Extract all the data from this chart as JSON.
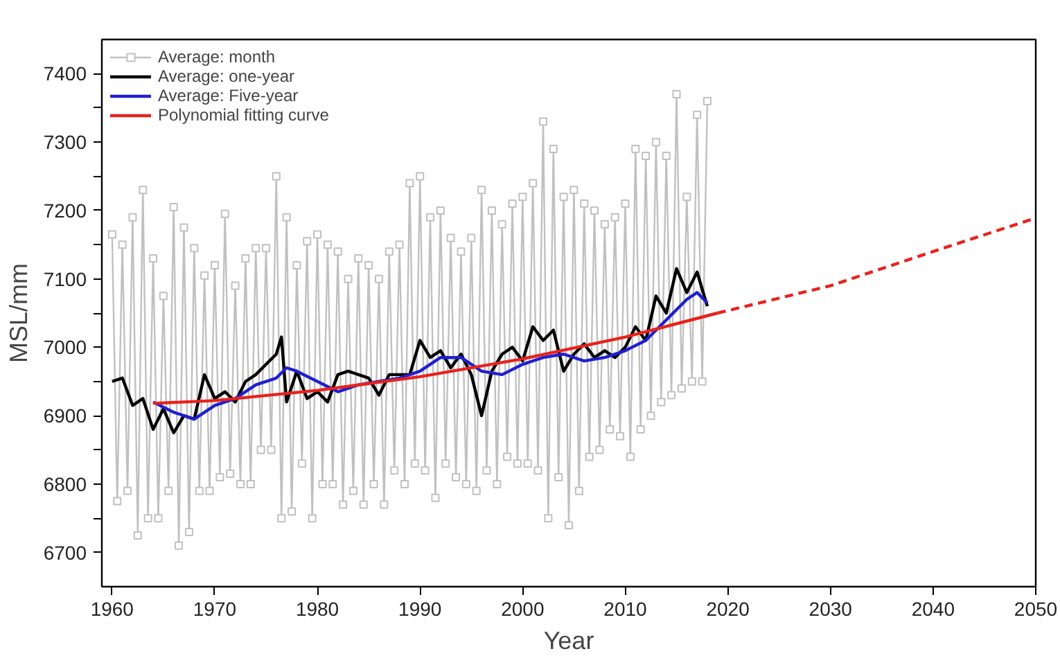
{
  "chart_data": {
    "type": "line",
    "xlabel": "Year",
    "ylabel": "MSL/mm",
    "xlim": [
      1959,
      2050
    ],
    "ylim": [
      6650,
      7450
    ],
    "xticks": [
      1960,
      1970,
      1980,
      1990,
      2000,
      2010,
      2020,
      2030,
      2040,
      2050
    ],
    "yticks": [
      6700,
      {
        "value": 6750,
        "label": null
      },
      6800,
      {
        "value": 6850,
        "label": null
      },
      6900,
      {
        "value": 6950,
        "label": null
      },
      7000,
      {
        "value": 7050,
        "label": null
      },
      7100,
      {
        "value": 7150,
        "label": null
      },
      7200,
      {
        "value": 7250,
        "label": null
      },
      7300,
      {
        "value": 7350,
        "label": null
      },
      7400
    ],
    "grid": false,
    "legend": "top left",
    "series": [
      {
        "name": "Average: month",
        "color": "#c0c0c0",
        "marker": "square",
        "x": [
          1960,
          1960.5,
          1961,
          1961.5,
          1962,
          1962.5,
          1963,
          1963.5,
          1964,
          1964.5,
          1965,
          1965.5,
          1966,
          1966.5,
          1967,
          1967.5,
          1968,
          1968.5,
          1969,
          1969.5,
          1970,
          1970.5,
          1971,
          1971.5,
          1972,
          1972.5,
          1973,
          1973.5,
          1974,
          1974.5,
          1975,
          1975.5,
          1976,
          1976.5,
          1977,
          1977.5,
          1978,
          1978.5,
          1979,
          1979.5,
          1980,
          1980.5,
          1981,
          1981.5,
          1982,
          1982.5,
          1983,
          1983.5,
          1984,
          1984.5,
          1985,
          1985.5,
          1986,
          1986.5,
          1987,
          1987.5,
          1988,
          1988.5,
          1989,
          1989.5,
          1990,
          1990.5,
          1991,
          1991.5,
          1992,
          1992.5,
          1993,
          1993.5,
          1994,
          1994.5,
          1995,
          1995.5,
          1996,
          1996.5,
          1997,
          1997.5,
          1998,
          1998.5,
          1999,
          1999.5,
          2000,
          2000.5,
          2001,
          2001.5,
          2002,
          2002.5,
          2003,
          2003.5,
          2004,
          2004.5,
          2005,
          2005.5,
          2006,
          2006.5,
          2007,
          2007.5,
          2008,
          2008.5,
          2009,
          2009.5,
          2010,
          2010.5,
          2011,
          2011.5,
          2012,
          2012.5,
          2013,
          2013.5,
          2014,
          2014.5,
          2015,
          2015.5,
          2016,
          2016.5,
          2017,
          2017.5,
          2018
        ],
        "values": [
          7165,
          6775,
          7150,
          6790,
          7190,
          6725,
          7230,
          6750,
          7130,
          6750,
          7075,
          6790,
          7205,
          6710,
          7175,
          6730,
          7145,
          6790,
          7105,
          6790,
          7120,
          6810,
          7195,
          6815,
          7090,
          6800,
          7130,
          6800,
          7145,
          6850,
          7145,
          6850,
          7250,
          6750,
          7190,
          6760,
          7120,
          6830,
          7155,
          6750,
          7165,
          6800,
          7150,
          6800,
          7140,
          6770,
          7100,
          6790,
          7130,
          6770,
          7120,
          6800,
          7100,
          6770,
          7140,
          6820,
          7150,
          6800,
          7240,
          6830,
          7250,
          6820,
          7190,
          6780,
          7200,
          6830,
          7160,
          6810,
          7140,
          6800,
          7160,
          6790,
          7230,
          6820,
          7200,
          6800,
          7180,
          6840,
          7210,
          6830,
          7220,
          6830,
          7240,
          6820,
          7330,
          6750,
          7290,
          6810,
          7220,
          6740,
          7230,
          6790,
          7210,
          6840,
          7200,
          6850,
          7180,
          6880,
          7190,
          6870,
          7210,
          6840,
          7290,
          6880,
          7280,
          6900,
          7300,
          6920,
          7280,
          6930,
          7370,
          6940,
          7220,
          6950,
          7340,
          6950,
          7360
        ]
      },
      {
        "name": "Average: one-year",
        "color": "#000000",
        "marker": "none",
        "x": [
          1960,
          1961,
          1962,
          1963,
          1964,
          1965,
          1966,
          1967,
          1968,
          1969,
          1970,
          1971,
          1972,
          1973,
          1974,
          1975,
          1976,
          1976.5,
          1977,
          1978,
          1979,
          1980,
          1981,
          1982,
          1983,
          1984,
          1985,
          1986,
          1987,
          1988,
          1989,
          1990,
          1991,
          1992,
          1993,
          1994,
          1995,
          1996,
          1997,
          1998,
          1999,
          2000,
          2001,
          2002,
          2003,
          2004,
          2005,
          2006,
          2007,
          2008,
          2009,
          2010,
          2011,
          2012,
          2013,
          2014,
          2015,
          2016,
          2017,
          2018
        ],
        "values": [
          6950,
          6955,
          6915,
          6925,
          6880,
          6910,
          6875,
          6900,
          6895,
          6960,
          6925,
          6935,
          6920,
          6950,
          6960,
          6975,
          6990,
          7015,
          6920,
          6965,
          6925,
          6935,
          6920,
          6960,
          6965,
          6960,
          6955,
          6930,
          6960,
          6960,
          6960,
          7010,
          6985,
          6995,
          6970,
          6990,
          6960,
          6900,
          6965,
          6990,
          7000,
          6980,
          7030,
          7010,
          7025,
          6965,
          6990,
          7005,
          6985,
          6995,
          6985,
          7000,
          7030,
          7010,
          7075,
          7050,
          7115,
          7080,
          7110,
          7060
        ]
      },
      {
        "name": "Average: Five-year",
        "color": "#1f1fd0",
        "marker": "none",
        "x": [
          1964,
          1966,
          1968,
          1970,
          1972,
          1974,
          1976,
          1977,
          1978,
          1980,
          1982,
          1984,
          1986,
          1988,
          1990,
          1992,
          1994,
          1996,
          1998,
          2000,
          2002,
          2004,
          2006,
          2008,
          2010,
          2012,
          2014,
          2016,
          2017,
          2018
        ],
        "values": [
          6920,
          6905,
          6895,
          6915,
          6925,
          6945,
          6955,
          6970,
          6965,
          6950,
          6935,
          6945,
          6950,
          6955,
          6965,
          6985,
          6985,
          6965,
          6960,
          6975,
          6985,
          6990,
          6980,
          6985,
          6995,
          7010,
          7040,
          7070,
          7080,
          7065
        ]
      },
      {
        "name": "Polynomial fitting curve",
        "color": "#e8221c",
        "marker": "none",
        "line_style": "solid",
        "x": [
          1964,
          1970,
          1980,
          1990,
          2000,
          2010,
          2019
        ],
        "values": [
          6918,
          6922,
          6937,
          6957,
          6983,
          7015,
          7050
        ]
      },
      {
        "color": "#e8221c",
        "marker": "none",
        "line_style": "dashed",
        "x": [
          2019,
          2030,
          2040,
          2050
        ],
        "values": [
          7050,
          7090,
          7140,
          7189
        ]
      }
    ]
  }
}
